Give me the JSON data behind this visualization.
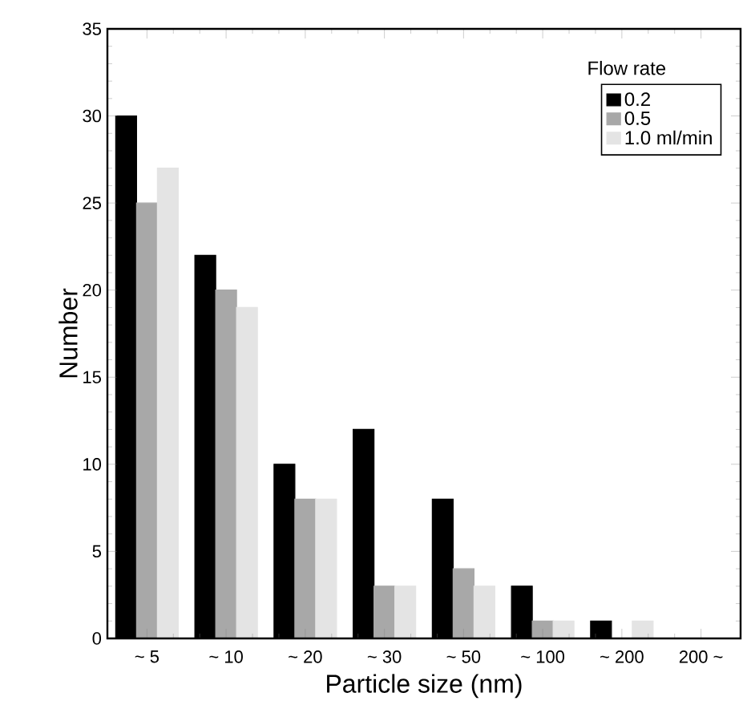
{
  "chart_data": {
    "type": "bar",
    "xlabel": "Particle size (nm)",
    "ylabel": "Number",
    "legend_title": "Flow rate",
    "categories": [
      "~ 5",
      "~ 10",
      "~ 20",
      "~ 30",
      "~ 50",
      "~ 100",
      "~ 200",
      "200 ~"
    ],
    "series": [
      {
        "name": "0.2",
        "color": "#000000",
        "values": [
          30,
          22,
          10,
          12,
          8,
          3,
          1,
          0
        ]
      },
      {
        "name": "0.5",
        "color": "#a8a8a8",
        "values": [
          25,
          20,
          8,
          3,
          4,
          1,
          0,
          0
        ]
      },
      {
        "name": "1.0 ml/min",
        "color": "#e4e4e4",
        "values": [
          27,
          19,
          8,
          3,
          3,
          1,
          1,
          0
        ]
      }
    ],
    "ylim": [
      0,
      35
    ],
    "yticks": [
      0,
      5,
      10,
      15,
      20,
      25,
      30,
      35
    ],
    "legend": "top right",
    "grid": false
  }
}
